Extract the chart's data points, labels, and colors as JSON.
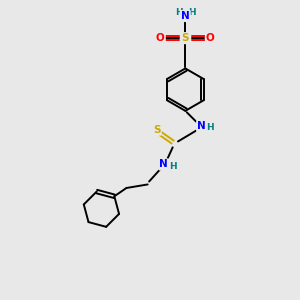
{
  "background_color": "#e8e8e8",
  "atom_colors": {
    "C": "#000000",
    "N": "#0000ff",
    "O": "#ff0000",
    "S": "#ccaa00",
    "H": "#008080"
  },
  "bond_color": "#000000",
  "figsize": [
    3.0,
    3.0
  ],
  "dpi": 100,
  "xlim": [
    0,
    10
  ],
  "ylim": [
    0,
    10
  ]
}
